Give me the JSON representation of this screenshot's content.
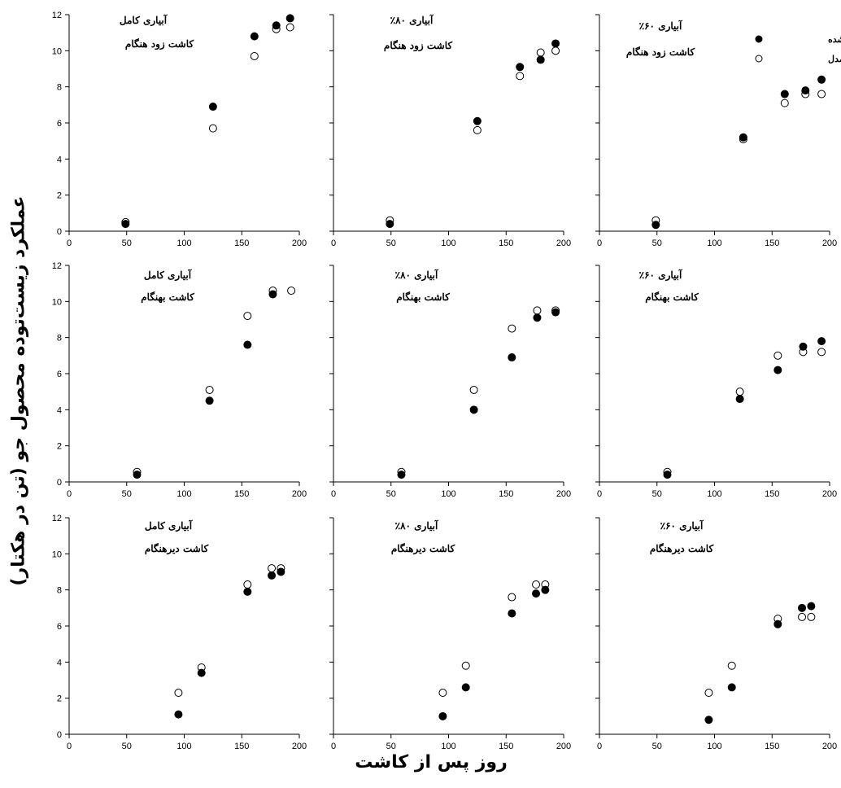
{
  "figure": {
    "ylabel": "عملکرد زیست‌توده محصول جو (تن در هکتار)",
    "xlabel": "روز پس از کاشت"
  },
  "legend": {
    "measured": "اندازه‌گیری شده",
    "model": "برآورد مدل",
    "placement": "top-right of top-right panel"
  },
  "colors": {
    "measured": "#000000",
    "model": "#ffffff",
    "axis": "#000000"
  },
  "chart_data": [
    {
      "type": "scatter",
      "title": "آبیاری کامل",
      "subtitle": "کاشت زود هنگام",
      "xlim": [
        0,
        200
      ],
      "ylim": [
        0,
        12
      ],
      "xticks": [
        "0",
        "50",
        "100",
        "150",
        "200"
      ],
      "yticks": [
        "0",
        "2",
        "4",
        "6",
        "8",
        "10",
        "12"
      ],
      "series": [
        {
          "name": "اندازه‌گیری شده",
          "x": [
            49,
            125,
            161,
            180,
            192
          ],
          "y": [
            0.4,
            6.9,
            10.8,
            11.4,
            11.8
          ]
        },
        {
          "name": "برآورد مدل",
          "x": [
            49,
            125,
            161,
            180,
            192
          ],
          "y": [
            0.5,
            5.7,
            9.7,
            11.2,
            11.3
          ]
        }
      ]
    },
    {
      "type": "scatter",
      "title": "آبیاری ۸۰٪",
      "subtitle": "کاشت زود هنگام",
      "xlim": [
        0,
        200
      ],
      "ylim": [
        0,
        12
      ],
      "xticks": [
        "0",
        "50",
        "100",
        "150",
        "200"
      ],
      "yticks": [],
      "series": [
        {
          "name": "اندازه‌گیری شده",
          "x": [
            49,
            125,
            162,
            180,
            193
          ],
          "y": [
            0.4,
            6.1,
            9.1,
            9.5,
            10.4
          ]
        },
        {
          "name": "برآورد مدل",
          "x": [
            49,
            125,
            162,
            180,
            193
          ],
          "y": [
            0.6,
            5.6,
            8.6,
            9.9,
            10.0
          ]
        }
      ]
    },
    {
      "type": "scatter",
      "title": "آبیاری ۶۰٪",
      "subtitle": "کاشت زود هنگام",
      "xlim": [
        0,
        200
      ],
      "ylim": [
        0,
        12
      ],
      "xticks": [
        "0",
        "50",
        "100",
        "150",
        "200"
      ],
      "yticks": [],
      "series": [
        {
          "name": "اندازه‌گیری شده",
          "x": [
            49,
            125,
            161,
            179,
            193
          ],
          "y": [
            0.35,
            5.2,
            7.6,
            7.8,
            8.4
          ]
        },
        {
          "name": "برآورد مدل",
          "x": [
            49,
            125,
            161,
            179,
            193
          ],
          "y": [
            0.6,
            5.1,
            7.1,
            7.6,
            7.6
          ]
        }
      ]
    },
    {
      "type": "scatter",
      "title": "آبیاری کامل",
      "subtitle": "کاشت بهنگام",
      "xlim": [
        0,
        200
      ],
      "ylim": [
        0,
        12
      ],
      "xticks": [
        "0",
        "50",
        "100",
        "150",
        "200"
      ],
      "yticks": [
        "0",
        "2",
        "4",
        "6",
        "8",
        "10",
        "12"
      ],
      "series": [
        {
          "name": "اندازه‌گیری شده",
          "x": [
            59,
            122,
            155,
            177
          ],
          "y": [
            0.4,
            4.5,
            7.6,
            10.4
          ]
        },
        {
          "name": "برآورد مدل",
          "x": [
            59,
            122,
            155,
            177,
            193
          ],
          "y": [
            0.55,
            5.1,
            9.2,
            10.6,
            10.6
          ]
        }
      ]
    },
    {
      "type": "scatter",
      "title": "آبیاری ۸۰٪",
      "subtitle": "کاشت بهنگام",
      "xlim": [
        0,
        200
      ],
      "ylim": [
        0,
        12
      ],
      "xticks": [
        "0",
        "50",
        "100",
        "150",
        "200"
      ],
      "yticks": [],
      "series": [
        {
          "name": "اندازه‌گیری شده",
          "x": [
            59,
            122,
            155,
            177,
            193
          ],
          "y": [
            0.4,
            4.0,
            6.9,
            9.1,
            9.4
          ]
        },
        {
          "name": "برآورد مدل",
          "x": [
            59,
            122,
            155,
            177,
            193
          ],
          "y": [
            0.55,
            5.1,
            8.5,
            9.5,
            9.5
          ]
        }
      ]
    },
    {
      "type": "scatter",
      "title": "آبیاری ۶۰٪",
      "subtitle": "کاشت بهنگام",
      "xlim": [
        0,
        200
      ],
      "ylim": [
        0,
        12
      ],
      "xticks": [
        "0",
        "50",
        "100",
        "150",
        "200"
      ],
      "yticks": [],
      "series": [
        {
          "name": "اندازه‌گیری شده",
          "x": [
            59,
            122,
            155,
            177,
            193
          ],
          "y": [
            0.4,
            4.6,
            6.2,
            7.5,
            7.8
          ]
        },
        {
          "name": "برآورد مدل",
          "x": [
            59,
            122,
            155,
            177,
            193
          ],
          "y": [
            0.55,
            5.0,
            7.0,
            7.2,
            7.2
          ]
        }
      ]
    },
    {
      "type": "scatter",
      "title": "آبیاری کامل",
      "subtitle": "کاشت دیرهنگام",
      "xlim": [
        0,
        200
      ],
      "ylim": [
        0,
        12
      ],
      "xticks": [
        "0",
        "50",
        "100",
        "150",
        "200"
      ],
      "yticks": [
        "0",
        "2",
        "4",
        "6",
        "8",
        "10",
        "12"
      ],
      "series": [
        {
          "name": "اندازه‌گیری شده",
          "x": [
            95,
            115,
            155,
            176,
            184
          ],
          "y": [
            1.1,
            3.4,
            7.9,
            8.8,
            9.0
          ]
        },
        {
          "name": "برآورد مدل",
          "x": [
            95,
            115,
            155,
            176,
            184
          ],
          "y": [
            2.3,
            3.7,
            8.3,
            9.2,
            9.2
          ]
        }
      ]
    },
    {
      "type": "scatter",
      "title": "آبیاری ۸۰٪",
      "subtitle": "کاشت دیرهنگام",
      "xlim": [
        0,
        200
      ],
      "ylim": [
        0,
        12
      ],
      "xticks": [
        "0",
        "50",
        "100",
        "150",
        "200"
      ],
      "yticks": [],
      "series": [
        {
          "name": "اندازه‌گیری شده",
          "x": [
            95,
            115,
            155,
            176,
            184
          ],
          "y": [
            1.0,
            2.6,
            6.7,
            7.8,
            8.0
          ]
        },
        {
          "name": "برآورد مدل",
          "x": [
            95,
            115,
            155,
            176,
            184
          ],
          "y": [
            2.3,
            3.8,
            7.6,
            8.3,
            8.3
          ]
        }
      ]
    },
    {
      "type": "scatter",
      "title": "آبیاری ۶۰٪",
      "subtitle": "کاشت دیرهنگام",
      "xlim": [
        0,
        200
      ],
      "ylim": [
        0,
        12
      ],
      "xticks": [
        "0",
        "50",
        "100",
        "150",
        "200"
      ],
      "yticks": [],
      "series": [
        {
          "name": "اندازه‌گیری شده",
          "x": [
            95,
            115,
            155,
            176,
            184
          ],
          "y": [
            0.8,
            2.6,
            6.1,
            7.0,
            7.1
          ]
        },
        {
          "name": "برآورد مدل",
          "x": [
            95,
            115,
            155,
            176,
            184
          ],
          "y": [
            2.3,
            3.8,
            6.4,
            6.5,
            6.5
          ]
        }
      ]
    }
  ]
}
